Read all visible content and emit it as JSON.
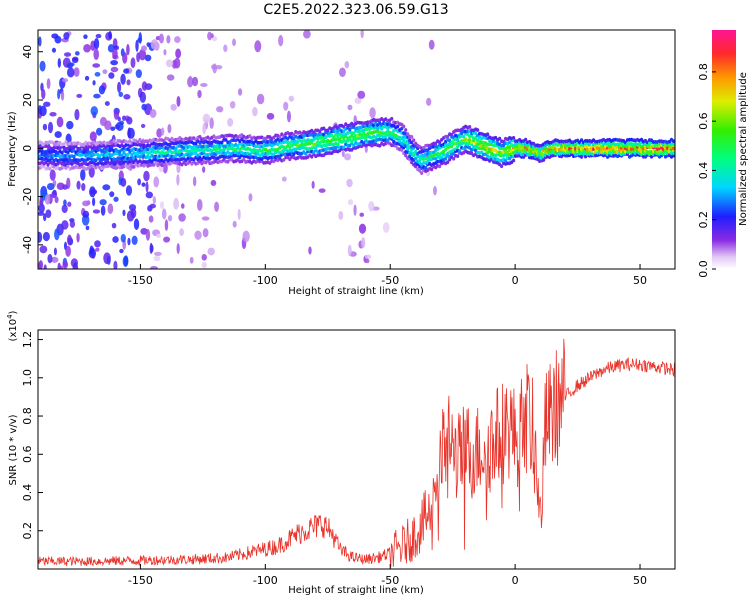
{
  "figure_title": "C2E5.2022.323.06.59.G13",
  "chart_data": [
    {
      "type": "heatmap",
      "title": "",
      "xlabel": "Height of straight line (km)",
      "ylabel": "Frequency (Hz)",
      "xlim": [
        -191,
        64
      ],
      "ylim": [
        -50,
        49
      ],
      "xticks": [
        "-150",
        "-100",
        "-50",
        "0",
        "50"
      ],
      "yticks": [
        "-40",
        "-20",
        "0",
        "20",
        "40"
      ],
      "colorbar": {
        "label": "Normalized spectral amplitude",
        "range": [
          0.0,
          0.97
        ],
        "ticks": [
          "0.0",
          "0.2",
          "0.4",
          "0.6",
          "0.8"
        ]
      },
      "ridge": [
        {
          "x": -191,
          "y": -3,
          "a": 0.3
        },
        {
          "x": -170,
          "y": -3,
          "a": 0.35
        },
        {
          "x": -150,
          "y": -2,
          "a": 0.4
        },
        {
          "x": -130,
          "y": -1,
          "a": 0.45
        },
        {
          "x": -110,
          "y": 0,
          "a": 0.5
        },
        {
          "x": -100,
          "y": -1,
          "a": 0.52
        },
        {
          "x": -90,
          "y": 1,
          "a": 0.55
        },
        {
          "x": -80,
          "y": 2,
          "a": 0.6
        },
        {
          "x": -70,
          "y": 4,
          "a": 0.62
        },
        {
          "x": -60,
          "y": 6,
          "a": 0.6
        },
        {
          "x": -50,
          "y": 7,
          "a": 0.55
        },
        {
          "x": -45,
          "y": 4,
          "a": 0.45
        },
        {
          "x": -38,
          "y": -5,
          "a": 0.45
        },
        {
          "x": -30,
          "y": -2,
          "a": 0.55
        },
        {
          "x": -20,
          "y": 4,
          "a": 0.6
        },
        {
          "x": -15,
          "y": 2,
          "a": 0.7
        },
        {
          "x": -10,
          "y": 0,
          "a": 0.75
        },
        {
          "x": -5,
          "y": -2,
          "a": 0.65
        },
        {
          "x": 0,
          "y": 0,
          "a": 0.8
        },
        {
          "x": 5,
          "y": 0,
          "a": 0.8
        },
        {
          "x": 10,
          "y": -2,
          "a": 0.75
        },
        {
          "x": 15,
          "y": 0,
          "a": 0.85
        },
        {
          "x": 30,
          "y": 0,
          "a": 0.9
        },
        {
          "x": 45,
          "y": 0,
          "a": 0.92
        },
        {
          "x": 64,
          "y": 0,
          "a": 0.92
        }
      ]
    },
    {
      "type": "line",
      "title": "",
      "xlabel": "Height of straight line (km)",
      "ylabel": "SNR (10 * v/v)",
      "yscale_label": "(x10",
      "yscale_exp": "4",
      "yscale_close": ")",
      "xlim": [
        -191,
        64
      ],
      "ylim": [
        0.0,
        1.25
      ],
      "xticks": [
        "-150",
        "-100",
        "-50",
        "0",
        "50"
      ],
      "yticks": [
        "0.2",
        "0.4",
        "0.6",
        "0.8",
        "1.0",
        "1.2"
      ],
      "color": "#e8332a",
      "series": [
        {
          "x": [
            -191,
            -170,
            -150,
            -130,
            -115,
            -105,
            -95,
            -90,
            -85,
            -80,
            -77,
            -73,
            -70,
            -65,
            -60,
            -55,
            -50,
            -45,
            -40,
            -35,
            -32,
            -30,
            -27,
            -25,
            -22,
            -20,
            -17,
            -15,
            -12,
            -10,
            -8,
            -5,
            -2,
            0,
            2,
            5,
            7,
            9,
            10,
            11,
            12,
            15,
            20,
            25,
            30,
            35,
            40,
            45,
            50,
            55,
            60,
            64
          ],
          "values": [
            0.04,
            0.04,
            0.045,
            0.05,
            0.06,
            0.09,
            0.12,
            0.16,
            0.2,
            0.22,
            0.24,
            0.18,
            0.1,
            0.06,
            0.05,
            0.06,
            0.08,
            0.12,
            0.18,
            0.28,
            0.45,
            0.55,
            0.7,
            0.62,
            0.58,
            0.64,
            0.6,
            0.62,
            0.66,
            0.65,
            0.68,
            0.72,
            0.75,
            0.68,
            0.72,
            0.8,
            0.72,
            0.5,
            0.28,
            0.4,
            0.74,
            0.82,
            0.9,
            0.96,
            1.0,
            1.04,
            1.06,
            1.07,
            1.07,
            1.06,
            1.05,
            1.04
          ]
        }
      ]
    }
  ]
}
